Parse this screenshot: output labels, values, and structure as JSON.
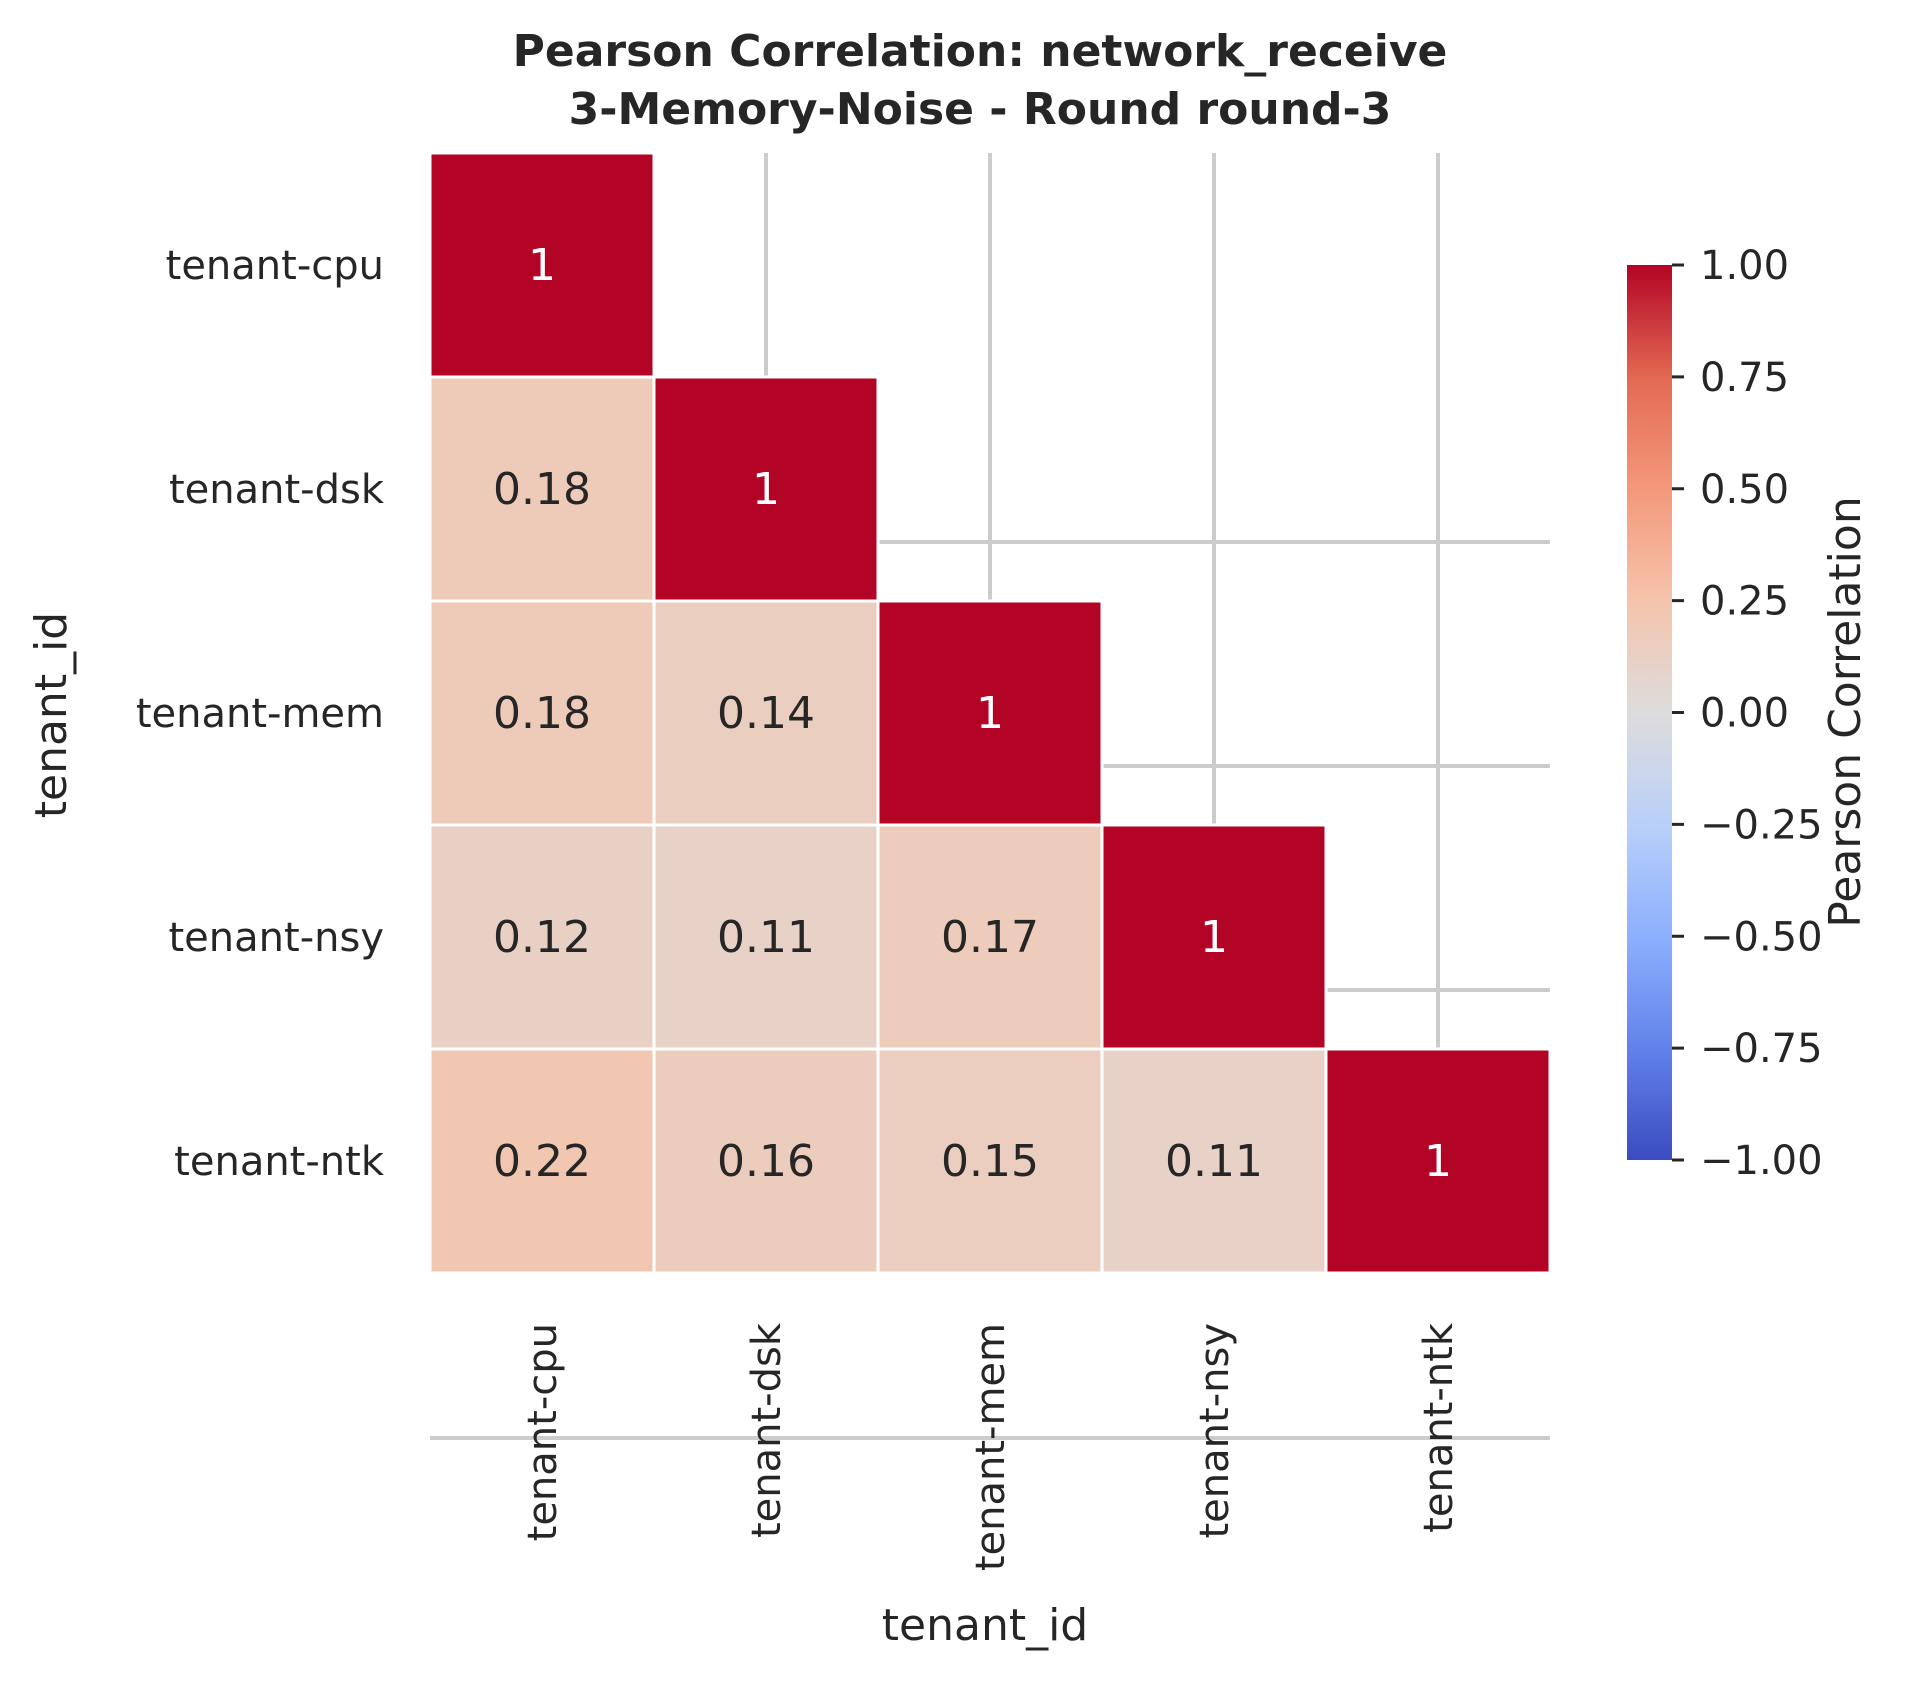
{
  "chart_data": {
    "type": "heatmap",
    "title": "Pearson Correlation: network_receive",
    "subtitle": "3-Memory-Noise - Round round-3",
    "xlabel": "tenant_id",
    "ylabel": "tenant_id",
    "rows": [
      "tenant-cpu",
      "tenant-dsk",
      "tenant-mem",
      "tenant-nsy",
      "tenant-ntk"
    ],
    "cols": [
      "tenant-cpu",
      "tenant-dsk",
      "tenant-mem",
      "tenant-nsy",
      "tenant-ntk"
    ],
    "mask": "upper-triangle",
    "values": [
      [
        1,
        null,
        null,
        null,
        null
      ],
      [
        0.18,
        1,
        null,
        null,
        null
      ],
      [
        0.18,
        0.14,
        1,
        null,
        null
      ],
      [
        0.12,
        0.11,
        0.17,
        1,
        null
      ],
      [
        0.22,
        0.16,
        0.15,
        0.11,
        1
      ]
    ],
    "labels": [
      [
        "1",
        "",
        "",
        "",
        ""
      ],
      [
        "0.18",
        "1",
        "",
        "",
        ""
      ],
      [
        "0.18",
        "0.14",
        "1",
        "",
        ""
      ],
      [
        "0.12",
        "0.11",
        "0.17",
        "1",
        ""
      ],
      [
        "0.22",
        "0.16",
        "0.15",
        "0.11",
        "1"
      ]
    ],
    "colormap": "coolwarm",
    "vmin": -1.0,
    "vmax": 1.0,
    "grid": true,
    "colorbar": {
      "label": "Pearson Correlation",
      "ticks": [
        1.0,
        0.75,
        0.5,
        0.25,
        0.0,
        -0.25,
        -0.5,
        -0.75,
        -1.0
      ],
      "tick_labels": [
        "1.00",
        "0.75",
        "0.50",
        "0.25",
        "0.00",
        "−0.25",
        "−0.50",
        "−0.75",
        "−1.00"
      ]
    }
  }
}
